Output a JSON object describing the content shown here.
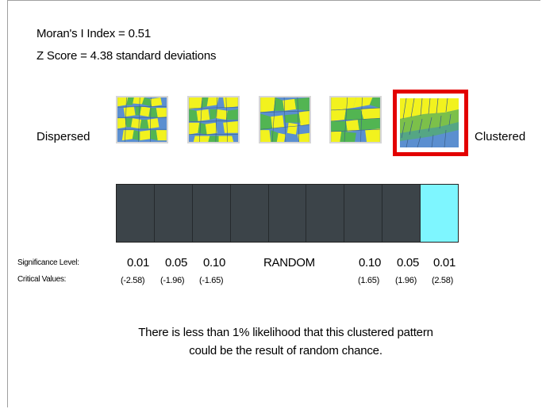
{
  "stats": {
    "moran": "Moran's I Index = 0.51",
    "z_score": "Z Score = 4.38 standard deviations"
  },
  "labels": {
    "dispersed": "Dispersed",
    "clustered": "Clustered"
  },
  "patterns": {
    "count": 5,
    "selected_index": 4,
    "colors": {
      "yellow": "#f2f21e",
      "green": "#52b552",
      "blue": "#5b8fd0",
      "highlight": "#e30000"
    }
  },
  "scale": {
    "cells": 9,
    "active_index": 8,
    "colors": {
      "cell": "#3c4449",
      "active": "#7ef6ff"
    }
  },
  "significance": {
    "row_label": "Significance Level:",
    "values": [
      "0.01",
      "0.05",
      "0.10",
      "RANDOM",
      "0.10",
      "0.05",
      "0.01"
    ]
  },
  "critical": {
    "row_label": "Critical Values:",
    "values": [
      "(-2.58)",
      "(-1.96)",
      "(-1.65)",
      "(1.65)",
      "(1.96)",
      "(2.58)"
    ]
  },
  "message": {
    "line1": "There is less than 1% likelihood that this clustered pattern",
    "line2": "could be the result of random chance."
  }
}
